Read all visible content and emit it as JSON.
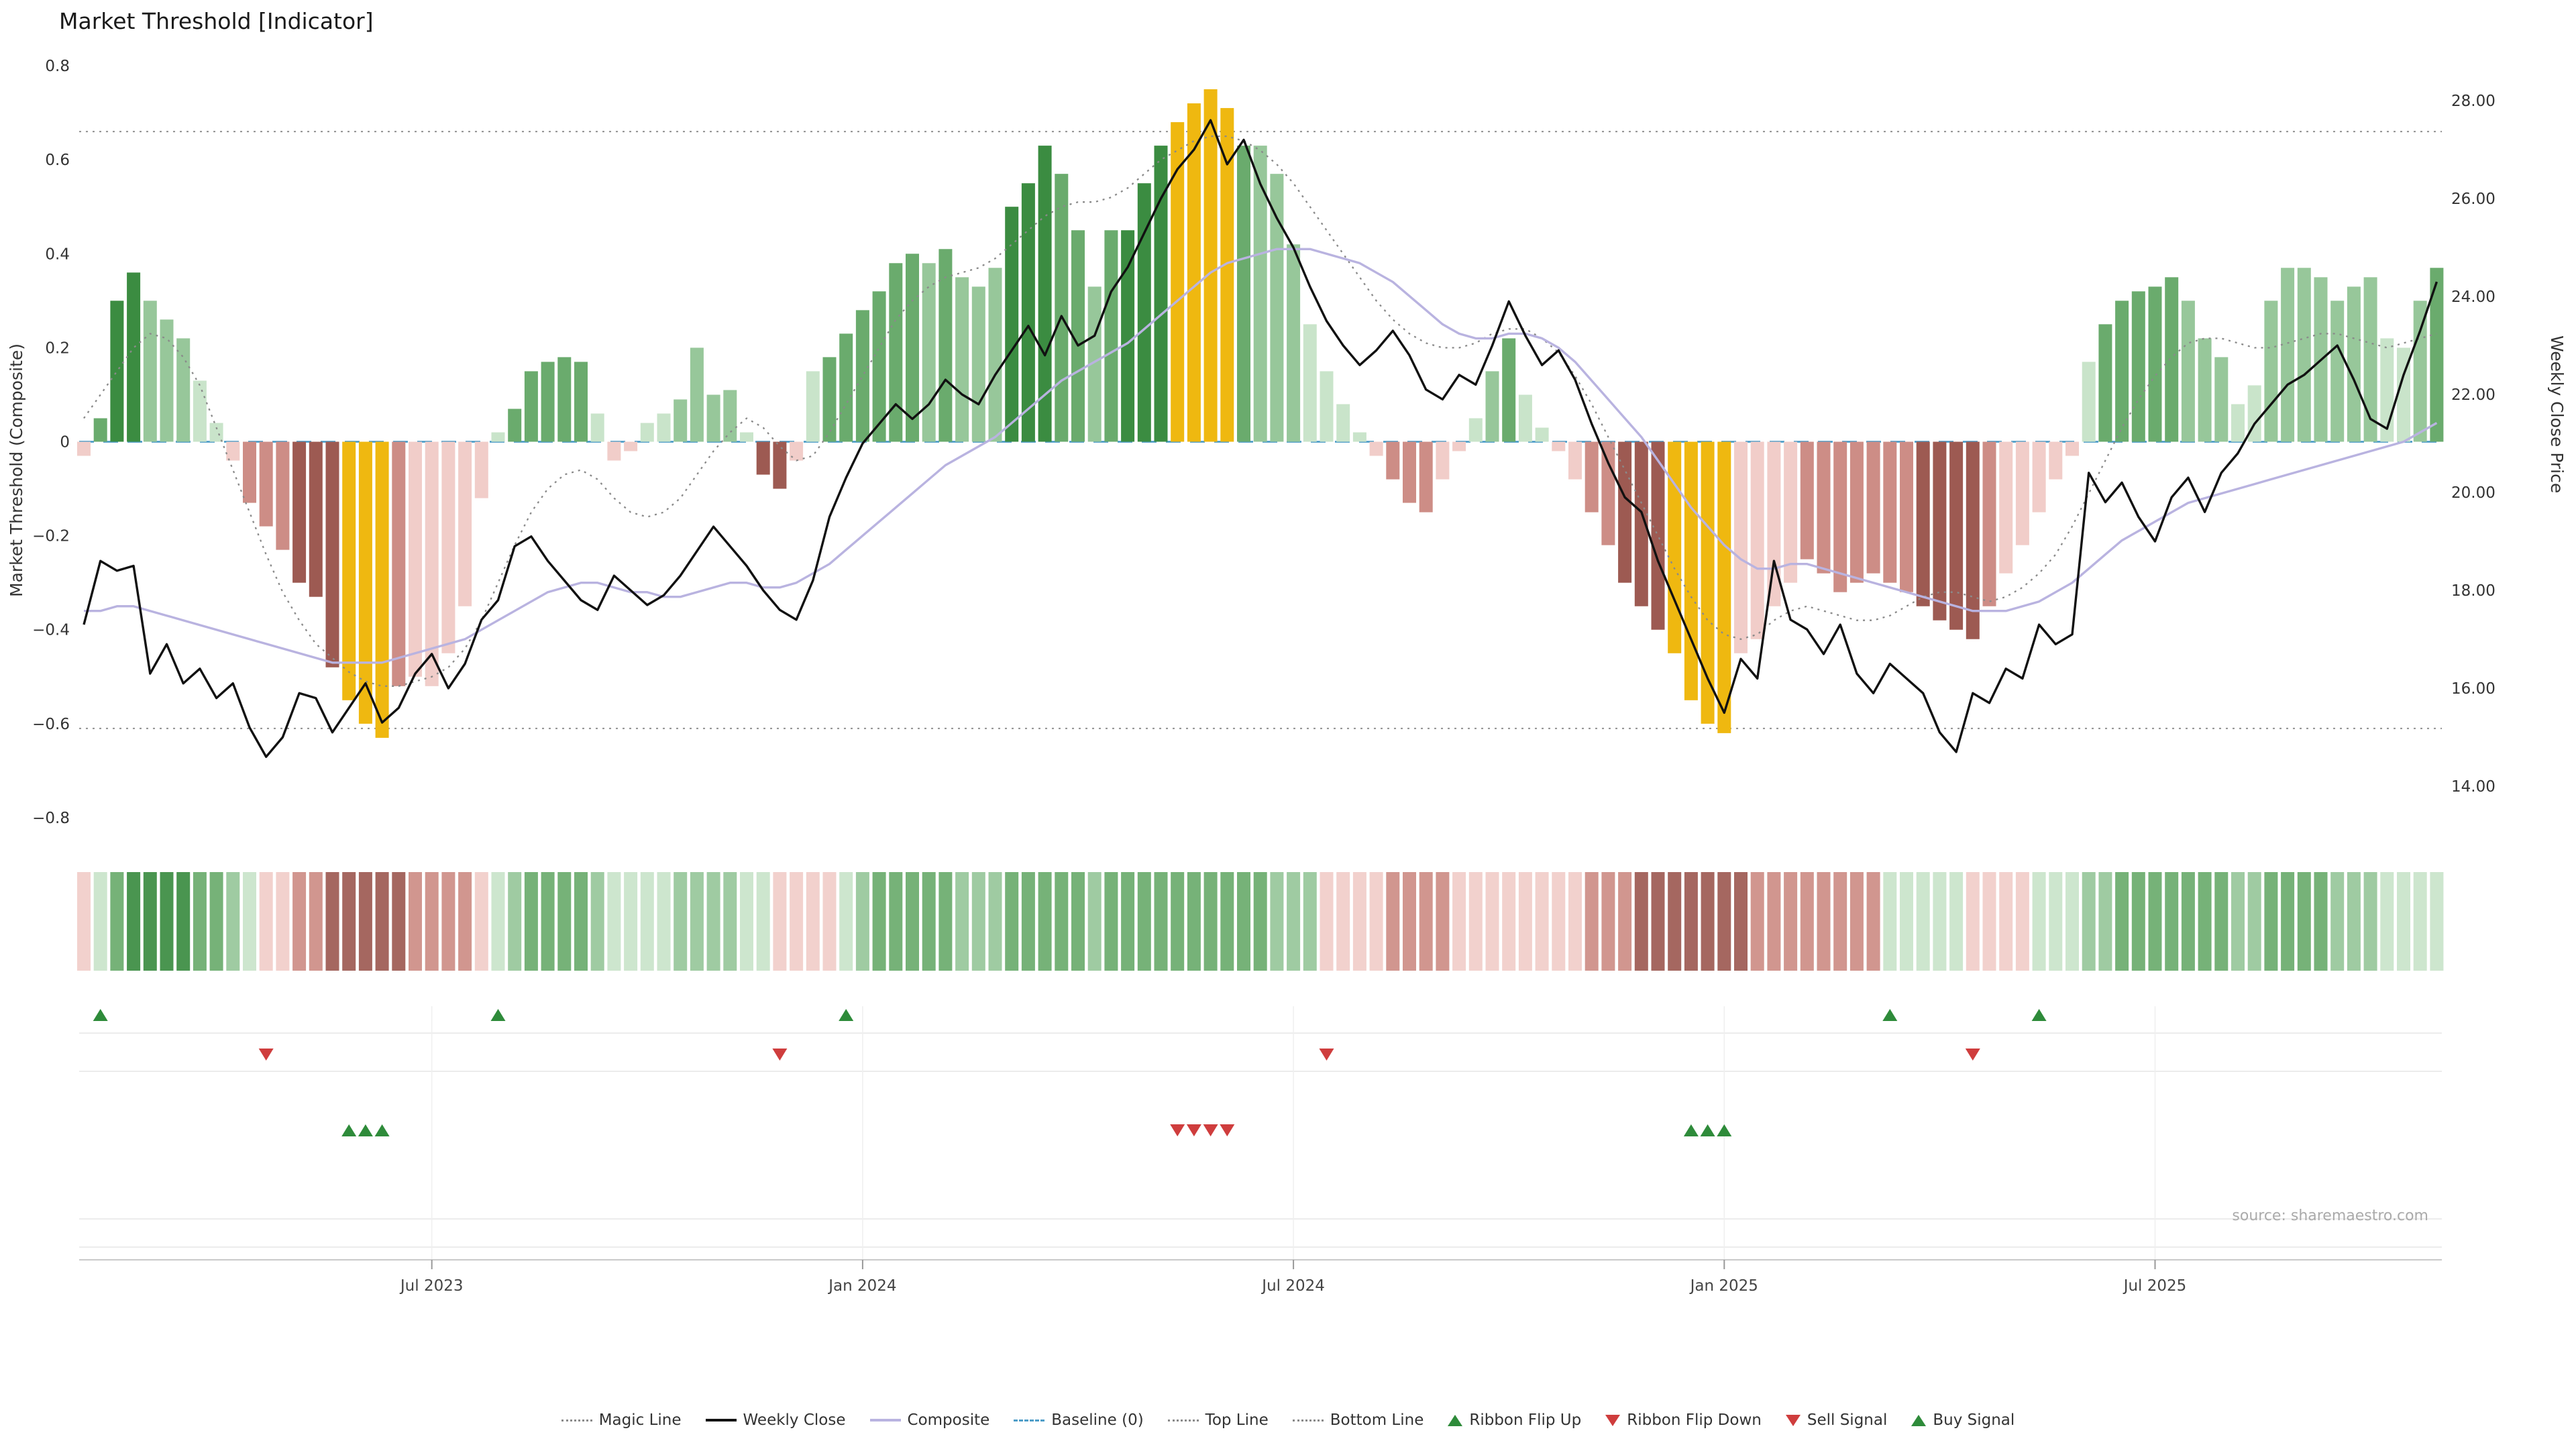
{
  "title": "Market Threshold [Indicator]",
  "source": "source: sharemaestro.com",
  "palette": {
    "G3": "#3b8c41",
    "G2": "#6aab6d",
    "G1": "#97c79a",
    "G0": "#c9e4ca",
    "Y": "#efb810",
    "R0": "#f1cdc9",
    "R1": "#cd8d86",
    "R2": "#9d5a52",
    "weekly_close": "#111111",
    "composite": "#b9b3e0",
    "magic": "#8a8a8a",
    "baseline": "#4e9dc8",
    "reference": "#909090",
    "signal_up": "#2e8b3a",
    "signal_down": "#cf3d3d"
  },
  "left_axis": {
    "label": "Market Threshold (Composite)",
    "range": [
      -0.8,
      0.8
    ],
    "ticks": [
      {
        "label": "0.8",
        "value": 0.8
      },
      {
        "label": "0.6",
        "value": 0.6
      },
      {
        "label": "0.4",
        "value": 0.4
      },
      {
        "label": "0.2",
        "value": 0.2
      },
      {
        "label": "0",
        "value": 0
      },
      {
        "label": "−0.2",
        "value": -0.2
      },
      {
        "label": "−0.4",
        "value": -0.4
      },
      {
        "label": "−0.6",
        "value": -0.6
      },
      {
        "label": "−0.8",
        "value": -0.8
      }
    ]
  },
  "right_axis": {
    "label": "Weekly Close Price",
    "range": [
      14,
      28
    ],
    "ticks": [
      {
        "label": "28.00",
        "value": 28
      },
      {
        "label": "26.00",
        "value": 26
      },
      {
        "label": "24.00",
        "value": 24
      },
      {
        "label": "22.00",
        "value": 22
      },
      {
        "label": "20.00",
        "value": 20
      },
      {
        "label": "18.00",
        "value": 18
      },
      {
        "label": "16.00",
        "value": 16
      },
      {
        "label": "14.00",
        "value": 14
      }
    ]
  },
  "x_ticks": [
    {
      "label": "Jul 2023",
      "i": 21
    },
    {
      "label": "Jan 2024",
      "i": 47
    },
    {
      "label": "Jul 2024",
      "i": 73
    },
    {
      "label": "Jan 2025",
      "i": 99
    },
    {
      "label": "Jul 2025",
      "i": 125
    }
  ],
  "chart_data": {
    "type": "bar",
    "title": "Market Threshold [Indicator]",
    "num_weeks": 143,
    "series": [
      {
        "name": "Market Threshold",
        "type": "bar",
        "axis": "left",
        "values": [
          -0.03,
          0.05,
          0.3,
          0.36,
          0.3,
          0.26,
          0.22,
          0.13,
          0.04,
          -0.04,
          -0.13,
          -0.18,
          -0.23,
          -0.3,
          -0.33,
          -0.48,
          -0.55,
          -0.6,
          -0.63,
          -0.52,
          -0.5,
          -0.52,
          -0.45,
          -0.35,
          -0.12,
          0.02,
          0.07,
          0.15,
          0.17,
          0.18,
          0.17,
          0.06,
          -0.04,
          -0.02,
          0.04,
          0.06,
          0.09,
          0.2,
          0.1,
          0.11,
          0.02,
          -0.07,
          -0.1,
          -0.04,
          0.15,
          0.18,
          0.23,
          0.28,
          0.32,
          0.38,
          0.4,
          0.38,
          0.41,
          0.35,
          0.33,
          0.37,
          0.5,
          0.55,
          0.63,
          0.57,
          0.45,
          0.33,
          0.45,
          0.45,
          0.55,
          0.63,
          0.68,
          0.72,
          0.75,
          0.71,
          0.63,
          0.63,
          0.57,
          0.42,
          0.25,
          0.15,
          0.08,
          0.02,
          -0.03,
          -0.08,
          -0.13,
          -0.15,
          -0.08,
          -0.02,
          0.05,
          0.15,
          0.22,
          0.1,
          0.03,
          -0.02,
          -0.08,
          -0.15,
          -0.22,
          -0.3,
          -0.35,
          -0.4,
          -0.45,
          -0.55,
          -0.6,
          -0.62,
          -0.45,
          -0.42,
          -0.35,
          -0.3,
          -0.25,
          -0.28,
          -0.32,
          -0.3,
          -0.28,
          -0.3,
          -0.32,
          -0.35,
          -0.38,
          -0.4,
          -0.42,
          -0.35,
          -0.28,
          -0.22,
          -0.15,
          -0.08,
          -0.03,
          0.17,
          0.25,
          0.3,
          0.32,
          0.33,
          0.35,
          0.3,
          0.22,
          0.18,
          0.08,
          0.12,
          0.3,
          0.37,
          0.37,
          0.35,
          0.3,
          0.33,
          0.35,
          0.22,
          0.2,
          0.3,
          0.37
        ],
        "colors": [
          "R0",
          "G2",
          "G3",
          "G3",
          "G1",
          "G1",
          "G1",
          "G0",
          "G0",
          "R0",
          "R1",
          "R1",
          "R1",
          "R2",
          "R2",
          "R2",
          "Y",
          "Y",
          "Y",
          "R1",
          "R0",
          "R0",
          "R0",
          "R0",
          "R0",
          "G0",
          "G2",
          "G2",
          "G2",
          "G2",
          "G2",
          "G0",
          "R0",
          "R0",
          "G0",
          "G0",
          "G1",
          "G1",
          "G1",
          "G1",
          "G0",
          "R2",
          "R2",
          "R0",
          "G0",
          "G2",
          "G2",
          "G2",
          "G2",
          "G2",
          "G2",
          "G1",
          "G2",
          "G1",
          "G1",
          "G1",
          "G3",
          "G3",
          "G3",
          "G2",
          "G2",
          "G1",
          "G2",
          "G3",
          "G3",
          "G3",
          "Y",
          "Y",
          "Y",
          "Y",
          "G2",
          "G1",
          "G1",
          "G1",
          "G0",
          "G0",
          "G0",
          "G0",
          "R0",
          "R1",
          "R1",
          "R1",
          "R0",
          "R0",
          "G0",
          "G1",
          "G2",
          "G0",
          "G0",
          "R0",
          "R0",
          "R1",
          "R1",
          "R2",
          "R2",
          "R2",
          "Y",
          "Y",
          "Y",
          "Y",
          "R0",
          "R0",
          "R0",
          "R0",
          "R1",
          "R1",
          "R1",
          "R1",
          "R1",
          "R1",
          "R1",
          "R2",
          "R2",
          "R2",
          "R2",
          "R1",
          "R0",
          "R0",
          "R0",
          "R0",
          "R0",
          "G0",
          "G2",
          "G2",
          "G2",
          "G2",
          "G2",
          "G1",
          "G1",
          "G1",
          "G0",
          "G0",
          "G1",
          "G1",
          "G1",
          "G1",
          "G1",
          "G1",
          "G1",
          "G0",
          "G0",
          "G1",
          "G2"
        ]
      },
      {
        "name": "Weekly Close",
        "type": "line",
        "axis": "right",
        "values": [
          17.3,
          18.6,
          18.4,
          18.5,
          16.3,
          16.9,
          16.1,
          16.4,
          15.8,
          16.1,
          15.2,
          14.6,
          15.0,
          15.9,
          15.8,
          15.1,
          15.6,
          16.1,
          15.3,
          15.6,
          16.3,
          16.7,
          16.0,
          16.5,
          17.4,
          17.8,
          18.9,
          19.1,
          18.6,
          18.2,
          17.8,
          17.6,
          18.3,
          18.0,
          17.7,
          17.9,
          18.3,
          18.8,
          19.3,
          18.9,
          18.5,
          18.0,
          17.6,
          17.4,
          18.2,
          19.5,
          20.3,
          21.0,
          21.4,
          21.8,
          21.5,
          21.8,
          22.3,
          22.0,
          21.8,
          22.4,
          22.9,
          23.4,
          22.8,
          23.6,
          23.0,
          23.2,
          24.1,
          24.6,
          25.3,
          26.0,
          26.6,
          27.0,
          27.6,
          26.7,
          27.2,
          26.3,
          25.6,
          25.0,
          24.2,
          23.5,
          23.0,
          22.6,
          22.9,
          23.3,
          22.8,
          22.1,
          21.9,
          22.4,
          22.2,
          23.0,
          23.9,
          23.2,
          22.6,
          22.9,
          22.3,
          21.4,
          20.6,
          19.9,
          19.6,
          18.6,
          17.8,
          17.0,
          16.2,
          15.5,
          16.6,
          16.2,
          18.6,
          17.4,
          17.2,
          16.7,
          17.3,
          16.3,
          15.9,
          16.5,
          16.2,
          15.9,
          15.1,
          14.7,
          15.9,
          15.7,
          16.4,
          16.2,
          17.3,
          16.9,
          17.1,
          20.4,
          19.8,
          20.2,
          19.5,
          19.0,
          19.9,
          20.3,
          19.6,
          20.4,
          20.8,
          21.4,
          21.8,
          22.2,
          22.4,
          22.7,
          23.0,
          22.3,
          21.5,
          21.3,
          22.4,
          23.3,
          24.3
        ]
      },
      {
        "name": "Composite",
        "type": "line",
        "axis": "left",
        "values": [
          -0.36,
          -0.36,
          -0.35,
          -0.35,
          -0.36,
          -0.37,
          -0.38,
          -0.39,
          -0.4,
          -0.41,
          -0.42,
          -0.43,
          -0.44,
          -0.45,
          -0.46,
          -0.47,
          -0.47,
          -0.47,
          -0.47,
          -0.46,
          -0.45,
          -0.44,
          -0.43,
          -0.42,
          -0.4,
          -0.38,
          -0.36,
          -0.34,
          -0.32,
          -0.31,
          -0.3,
          -0.3,
          -0.31,
          -0.32,
          -0.32,
          -0.33,
          -0.33,
          -0.32,
          -0.31,
          -0.3,
          -0.3,
          -0.31,
          -0.31,
          -0.3,
          -0.28,
          -0.26,
          -0.23,
          -0.2,
          -0.17,
          -0.14,
          -0.11,
          -0.08,
          -0.05,
          -0.03,
          -0.01,
          0.01,
          0.04,
          0.07,
          0.1,
          0.13,
          0.15,
          0.17,
          0.19,
          0.21,
          0.24,
          0.27,
          0.3,
          0.33,
          0.36,
          0.38,
          0.39,
          0.4,
          0.41,
          0.41,
          0.41,
          0.4,
          0.39,
          0.38,
          0.36,
          0.34,
          0.31,
          0.28,
          0.25,
          0.23,
          0.22,
          0.22,
          0.23,
          0.23,
          0.22,
          0.2,
          0.17,
          0.13,
          0.09,
          0.05,
          0.01,
          -0.04,
          -0.09,
          -0.14,
          -0.18,
          -0.22,
          -0.25,
          -0.27,
          -0.27,
          -0.26,
          -0.26,
          -0.27,
          -0.28,
          -0.29,
          -0.3,
          -0.31,
          -0.32,
          -0.33,
          -0.34,
          -0.35,
          -0.36,
          -0.36,
          -0.36,
          -0.35,
          -0.34,
          -0.32,
          -0.3,
          -0.27,
          -0.24,
          -0.21,
          -0.19,
          -0.17,
          -0.15,
          -0.13,
          -0.12,
          -0.11,
          -0.1,
          -0.09,
          -0.08,
          -0.07,
          -0.06,
          -0.05,
          -0.04,
          -0.03,
          -0.02,
          -0.01,
          0.0,
          0.02,
          0.04
        ]
      },
      {
        "name": "Magic Line",
        "type": "line",
        "axis": "left",
        "style": "dotted",
        "values": [
          0.05,
          0.1,
          0.15,
          0.2,
          0.23,
          0.22,
          0.18,
          0.12,
          0.03,
          -0.06,
          -0.15,
          -0.24,
          -0.32,
          -0.38,
          -0.43,
          -0.46,
          -0.49,
          -0.51,
          -0.52,
          -0.52,
          -0.51,
          -0.5,
          -0.48,
          -0.44,
          -0.38,
          -0.3,
          -0.22,
          -0.15,
          -0.1,
          -0.07,
          -0.06,
          -0.08,
          -0.12,
          -0.15,
          -0.16,
          -0.15,
          -0.12,
          -0.07,
          -0.02,
          0.02,
          0.05,
          0.03,
          -0.01,
          -0.04,
          -0.03,
          0.02,
          0.08,
          0.14,
          0.2,
          0.26,
          0.3,
          0.33,
          0.35,
          0.36,
          0.37,
          0.39,
          0.42,
          0.45,
          0.48,
          0.5,
          0.51,
          0.51,
          0.52,
          0.54,
          0.57,
          0.6,
          0.62,
          0.64,
          0.65,
          0.65,
          0.64,
          0.62,
          0.59,
          0.55,
          0.5,
          0.45,
          0.4,
          0.35,
          0.3,
          0.26,
          0.23,
          0.21,
          0.2,
          0.2,
          0.21,
          0.23,
          0.24,
          0.24,
          0.22,
          0.19,
          0.14,
          0.08,
          0.01,
          -0.06,
          -0.13,
          -0.2,
          -0.27,
          -0.33,
          -0.38,
          -0.41,
          -0.42,
          -0.41,
          -0.38,
          -0.36,
          -0.35,
          -0.36,
          -0.37,
          -0.38,
          -0.38,
          -0.37,
          -0.35,
          -0.33,
          -0.32,
          -0.32,
          -0.33,
          -0.34,
          -0.33,
          -0.31,
          -0.28,
          -0.24,
          -0.18,
          -0.11,
          -0.04,
          0.03,
          0.09,
          0.14,
          0.18,
          0.21,
          0.22,
          0.22,
          0.21,
          0.2,
          0.2,
          0.21,
          0.22,
          0.23,
          0.23,
          0.22,
          0.21,
          0.2,
          0.21,
          0.22,
          0.23
        ]
      }
    ],
    "reference_lines": {
      "baseline": 0,
      "top_line": 0.66,
      "bottom_line": -0.61
    },
    "ribbon": {
      "colors": [
        "R0",
        "G0",
        "G2",
        "G3",
        "G3",
        "G3",
        "G3",
        "G2",
        "G2",
        "G1",
        "G0",
        "R0",
        "R0",
        "R1",
        "R1",
        "R2",
        "R2",
        "R2",
        "R2",
        "R2",
        "R1",
        "R1",
        "R1",
        "R1",
        "R0",
        "G0",
        "G1",
        "G2",
        "G2",
        "G2",
        "G2",
        "G1",
        "G0",
        "G0",
        "G0",
        "G0",
        "G1",
        "G1",
        "G1",
        "G1",
        "G0",
        "G0",
        "R0",
        "R0",
        "R0",
        "R0",
        "G0",
        "G1",
        "G2",
        "G2",
        "G2",
        "G2",
        "G2",
        "G1",
        "G1",
        "G1",
        "G2",
        "G2",
        "G2",
        "G2",
        "G2",
        "G1",
        "G2",
        "G2",
        "G2",
        "G2",
        "G2",
        "G2",
        "G2",
        "G2",
        "G2",
        "G2",
        "G1",
        "G1",
        "G1",
        "R0",
        "R0",
        "R0",
        "R0",
        "R1",
        "R1",
        "R1",
        "R1",
        "R0",
        "R0",
        "R0",
        "R0",
        "R0",
        "R0",
        "R0",
        "R0",
        "R1",
        "R1",
        "R1",
        "R2",
        "R2",
        "R2",
        "R2",
        "R2",
        "R2",
        "R2",
        "R1",
        "R1",
        "R1",
        "R1",
        "R1",
        "R1",
        "R1",
        "R1",
        "G0",
        "G0",
        "G0",
        "G0",
        "G0",
        "R0",
        "R0",
        "R0",
        "R0",
        "G0",
        "G0",
        "G0",
        "G1",
        "G1",
        "G2",
        "G2",
        "G2",
        "G2",
        "G2",
        "G2",
        "G2",
        "G1",
        "G1",
        "G2",
        "G2",
        "G2",
        "G2",
        "G1",
        "G1",
        "G1",
        "G0",
        "G0",
        "G0",
        "G0"
      ]
    },
    "signals": {
      "ribbon_flip_up_weeks": [
        1,
        25,
        46,
        109,
        118
      ],
      "ribbon_flip_down_weeks": [
        11,
        42,
        75,
        114
      ],
      "sell_signal_weeks": [
        66,
        67,
        68,
        69
      ],
      "buy_signal_weeks": [
        16,
        17,
        18,
        97,
        98,
        99
      ]
    },
    "legend": [
      {
        "label": "Magic Line",
        "type": "dotted"
      },
      {
        "label": "Weekly Close",
        "type": "solid-black"
      },
      {
        "label": "Composite",
        "type": "solid-purple"
      },
      {
        "label": "Baseline (0)",
        "type": "dashed-blue"
      },
      {
        "label": "Top Line",
        "type": "dotted"
      },
      {
        "label": "Bottom Line",
        "type": "dotted"
      },
      {
        "label": "Ribbon Flip Up",
        "type": "tri-up"
      },
      {
        "label": "Ribbon Flip Down",
        "type": "tri-down"
      },
      {
        "label": "Sell Signal",
        "type": "tri-down"
      },
      {
        "label": "Buy Signal",
        "type": "tri-up"
      }
    ]
  }
}
